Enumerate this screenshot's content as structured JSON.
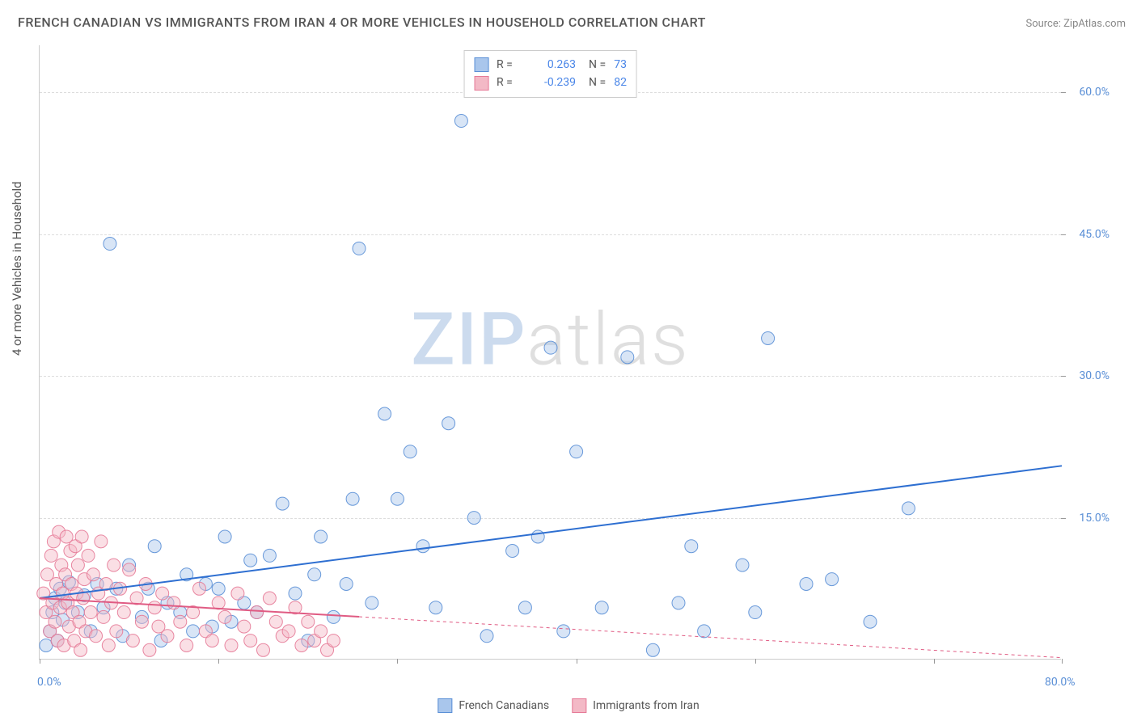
{
  "title": "FRENCH CANADIAN VS IMMIGRANTS FROM IRAN 4 OR MORE VEHICLES IN HOUSEHOLD CORRELATION CHART",
  "source_label": "Source: ZipAtlas.com",
  "y_axis_label": "4 or more Vehicles in Household",
  "watermark": {
    "left": "ZIP",
    "right": "atlas"
  },
  "chart": {
    "type": "scatter",
    "background_color": "#ffffff",
    "grid_color": "#dddddd",
    "axis_color": "#cccccc",
    "tick_label_color": "#5a8fd6",
    "xlim": [
      0,
      80
    ],
    "ylim": [
      0,
      65
    ],
    "xticks": [
      0,
      14,
      28,
      42,
      56,
      70,
      80
    ],
    "xtick_labels": {
      "0": "0.0%",
      "80": "80.0%"
    },
    "yticks": [
      15,
      30,
      45,
      60
    ],
    "ytick_labels": [
      "15.0%",
      "30.0%",
      "45.0%",
      "60.0%"
    ],
    "marker_radius": 8,
    "marker_opacity": 0.45,
    "marker_stroke_opacity": 0.9,
    "trend_line_width": 2
  },
  "series": [
    {
      "name": "French Canadians",
      "fill_color": "#a9c6ec",
      "stroke_color": "#5a8fd6",
      "trend_color": "#2e6fd1",
      "trend_dash": "none",
      "R": "0.263",
      "N": "73",
      "trend": {
        "x1": 0,
        "y1": 6.5,
        "x2": 80,
        "y2": 20.5
      },
      "points": [
        [
          0.5,
          1.5
        ],
        [
          0.8,
          3.0
        ],
        [
          1.0,
          5.0
        ],
        [
          1.2,
          6.5
        ],
        [
          1.4,
          2.0
        ],
        [
          1.6,
          7.5
        ],
        [
          1.8,
          4.2
        ],
        [
          2.0,
          6.0
        ],
        [
          2.3,
          8.2
        ],
        [
          3.0,
          5.0
        ],
        [
          3.5,
          6.8
        ],
        [
          4.0,
          3.0
        ],
        [
          4.5,
          8.0
        ],
        [
          5.0,
          5.5
        ],
        [
          6.0,
          7.5
        ],
        [
          6.5,
          2.5
        ],
        [
          7.0,
          10.0
        ],
        [
          8.0,
          4.5
        ],
        [
          8.5,
          7.5
        ],
        [
          9.0,
          12.0
        ],
        [
          9.5,
          2.0
        ],
        [
          10.0,
          6.0
        ],
        [
          11.0,
          5.0
        ],
        [
          11.5,
          9.0
        ],
        [
          12.0,
          3.0
        ],
        [
          13.0,
          8.0
        ],
        [
          14.0,
          7.5
        ],
        [
          14.5,
          13.0
        ],
        [
          15.0,
          4.0
        ],
        [
          16.0,
          6.0
        ],
        [
          17.0,
          5.0
        ],
        [
          18.0,
          11.0
        ],
        [
          19.0,
          16.5
        ],
        [
          20.0,
          7.0
        ],
        [
          21.0,
          2.0
        ],
        [
          22.0,
          13.0
        ],
        [
          23.0,
          4.5
        ],
        [
          24.0,
          8.0
        ],
        [
          24.5,
          17.0
        ],
        [
          25.0,
          43.5
        ],
        [
          26.0,
          6.0
        ],
        [
          27.0,
          26.0
        ],
        [
          28.0,
          17.0
        ],
        [
          29.0,
          22.0
        ],
        [
          30.0,
          12.0
        ],
        [
          31.0,
          5.5
        ],
        [
          32.0,
          25.0
        ],
        [
          33.0,
          57.0
        ],
        [
          34.0,
          15.0
        ],
        [
          35.0,
          2.5
        ],
        [
          37.0,
          11.5
        ],
        [
          38.0,
          5.5
        ],
        [
          39.0,
          13.0
        ],
        [
          40.0,
          33.0
        ],
        [
          41.0,
          3.0
        ],
        [
          42.0,
          22.0
        ],
        [
          44.0,
          5.5
        ],
        [
          46.0,
          32.0
        ],
        [
          48.0,
          1.0
        ],
        [
          50.0,
          6.0
        ],
        [
          51.0,
          12.0
        ],
        [
          52.0,
          3.0
        ],
        [
          55.0,
          10.0
        ],
        [
          56.0,
          5.0
        ],
        [
          57.0,
          34.0
        ],
        [
          60.0,
          8.0
        ],
        [
          62.0,
          8.5
        ],
        [
          65.0,
          4.0
        ],
        [
          68.0,
          16.0
        ],
        [
          5.5,
          44.0
        ],
        [
          21.5,
          9.0
        ],
        [
          13.5,
          3.5
        ],
        [
          16.5,
          10.5
        ]
      ]
    },
    {
      "name": "Immigrants from Iran",
      "fill_color": "#f3b9c6",
      "stroke_color": "#e67a97",
      "trend_color": "#e05b83",
      "trend_dash": "4 4",
      "R": "-0.239",
      "N": "82",
      "trend": {
        "x1": 0,
        "y1": 6.5,
        "x2": 80,
        "y2": 0.2
      },
      "trend_solid_until_x": 25,
      "points": [
        [
          0.3,
          7.0
        ],
        [
          0.5,
          5.0
        ],
        [
          0.6,
          9.0
        ],
        [
          0.8,
          3.0
        ],
        [
          0.9,
          11.0
        ],
        [
          1.0,
          6.0
        ],
        [
          1.1,
          12.5
        ],
        [
          1.2,
          4.0
        ],
        [
          1.3,
          8.0
        ],
        [
          1.4,
          2.0
        ],
        [
          1.5,
          13.5
        ],
        [
          1.6,
          5.5
        ],
        [
          1.7,
          10.0
        ],
        [
          1.8,
          7.0
        ],
        [
          1.9,
          1.5
        ],
        [
          2.0,
          9.0
        ],
        [
          2.1,
          13.0
        ],
        [
          2.2,
          6.0
        ],
        [
          2.3,
          3.5
        ],
        [
          2.4,
          11.5
        ],
        [
          2.5,
          8.0
        ],
        [
          2.6,
          5.0
        ],
        [
          2.7,
          2.0
        ],
        [
          2.8,
          12.0
        ],
        [
          2.9,
          7.0
        ],
        [
          3.0,
          10.0
        ],
        [
          3.1,
          4.0
        ],
        [
          3.2,
          1.0
        ],
        [
          3.3,
          13.0
        ],
        [
          3.4,
          6.5
        ],
        [
          3.5,
          8.5
        ],
        [
          3.6,
          3.0
        ],
        [
          3.8,
          11.0
        ],
        [
          4.0,
          5.0
        ],
        [
          4.2,
          9.0
        ],
        [
          4.4,
          2.5
        ],
        [
          4.6,
          7.0
        ],
        [
          4.8,
          12.5
        ],
        [
          5.0,
          4.5
        ],
        [
          5.2,
          8.0
        ],
        [
          5.4,
          1.5
        ],
        [
          5.6,
          6.0
        ],
        [
          5.8,
          10.0
        ],
        [
          6.0,
          3.0
        ],
        [
          6.3,
          7.5
        ],
        [
          6.6,
          5.0
        ],
        [
          7.0,
          9.5
        ],
        [
          7.3,
          2.0
        ],
        [
          7.6,
          6.5
        ],
        [
          8.0,
          4.0
        ],
        [
          8.3,
          8.0
        ],
        [
          8.6,
          1.0
        ],
        [
          9.0,
          5.5
        ],
        [
          9.3,
          3.5
        ],
        [
          9.6,
          7.0
        ],
        [
          10.0,
          2.5
        ],
        [
          10.5,
          6.0
        ],
        [
          11.0,
          4.0
        ],
        [
          11.5,
          1.5
        ],
        [
          12.0,
          5.0
        ],
        [
          12.5,
          7.5
        ],
        [
          13.0,
          3.0
        ],
        [
          13.5,
          2.0
        ],
        [
          14.0,
          6.0
        ],
        [
          14.5,
          4.5
        ],
        [
          15.0,
          1.5
        ],
        [
          15.5,
          7.0
        ],
        [
          16.0,
          3.5
        ],
        [
          16.5,
          2.0
        ],
        [
          17.0,
          5.0
        ],
        [
          17.5,
          1.0
        ],
        [
          18.0,
          6.5
        ],
        [
          18.5,
          4.0
        ],
        [
          19.0,
          2.5
        ],
        [
          19.5,
          3.0
        ],
        [
          20.0,
          5.5
        ],
        [
          20.5,
          1.5
        ],
        [
          21.0,
          4.0
        ],
        [
          21.5,
          2.0
        ],
        [
          22.0,
          3.0
        ],
        [
          22.5,
          1.0
        ],
        [
          23.0,
          2.0
        ]
      ]
    }
  ],
  "legend_bottom": [
    {
      "label": "French Canadians",
      "swatch_fill": "#a9c6ec",
      "swatch_stroke": "#5a8fd6"
    },
    {
      "label": "Immigrants from Iran",
      "swatch_fill": "#f3b9c6",
      "swatch_stroke": "#e67a97"
    }
  ]
}
